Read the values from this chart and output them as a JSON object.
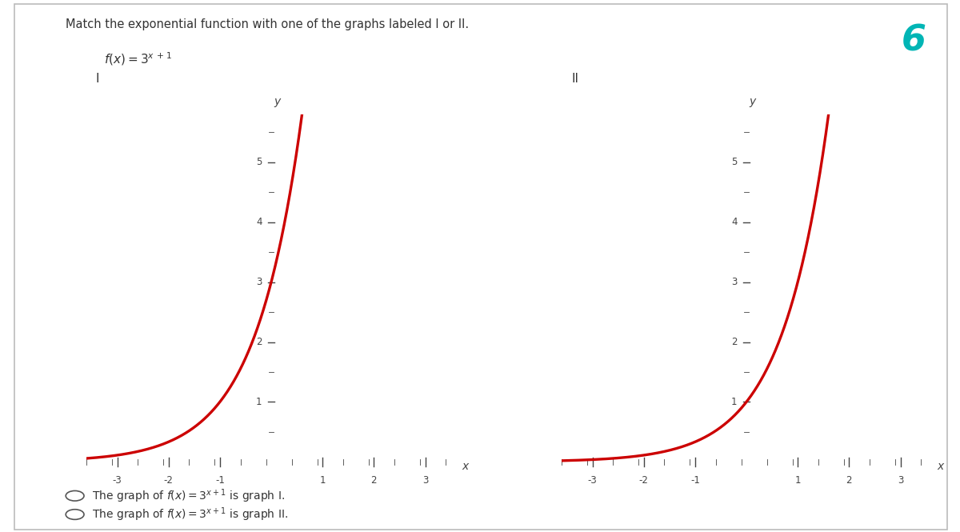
{
  "title": "Match the exponential function with one of the graphs labeled I or II.",
  "curve_color": "#cc0000",
  "axis_color": "#444444",
  "text_color": "#333333",
  "background_color": "#ffffff",
  "number_label": "6",
  "number_color": "#00b5b5",
  "graph_I_func": "3^(x+1)",
  "graph_II_func": "3^x",
  "xlim_plot": [
    -3.6,
    3.6
  ],
  "ylim_plot": [
    -0.15,
    5.8
  ],
  "xticks": [
    -3,
    -2,
    -1,
    1,
    2,
    3
  ],
  "yticks": [
    1,
    2,
    3,
    4,
    5
  ],
  "minor_x_step": 0.5,
  "minor_y_step": 0.5
}
